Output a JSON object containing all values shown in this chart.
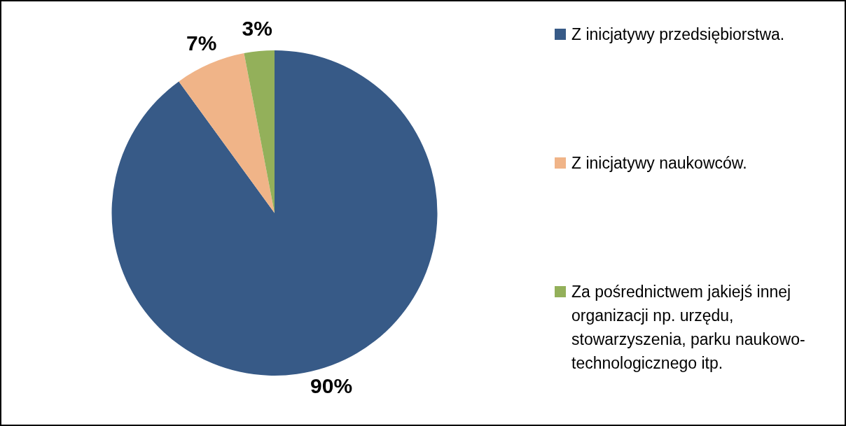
{
  "chart_data": {
    "type": "pie",
    "categories": [
      "Z inicjatywy przedsiębiorstwa.",
      "Z inicjatywy naukowców.",
      "Za pośrednictwem jakiejś innej organizacji np. urzędu, stowarzyszenia, parku naukowo- technologicznego itp."
    ],
    "values": [
      90,
      7,
      3
    ],
    "colors": [
      "#375a87",
      "#f0b488",
      "#93b05a"
    ],
    "value_labels": [
      "90%",
      "7%",
      "3%"
    ],
    "legend": "right"
  }
}
